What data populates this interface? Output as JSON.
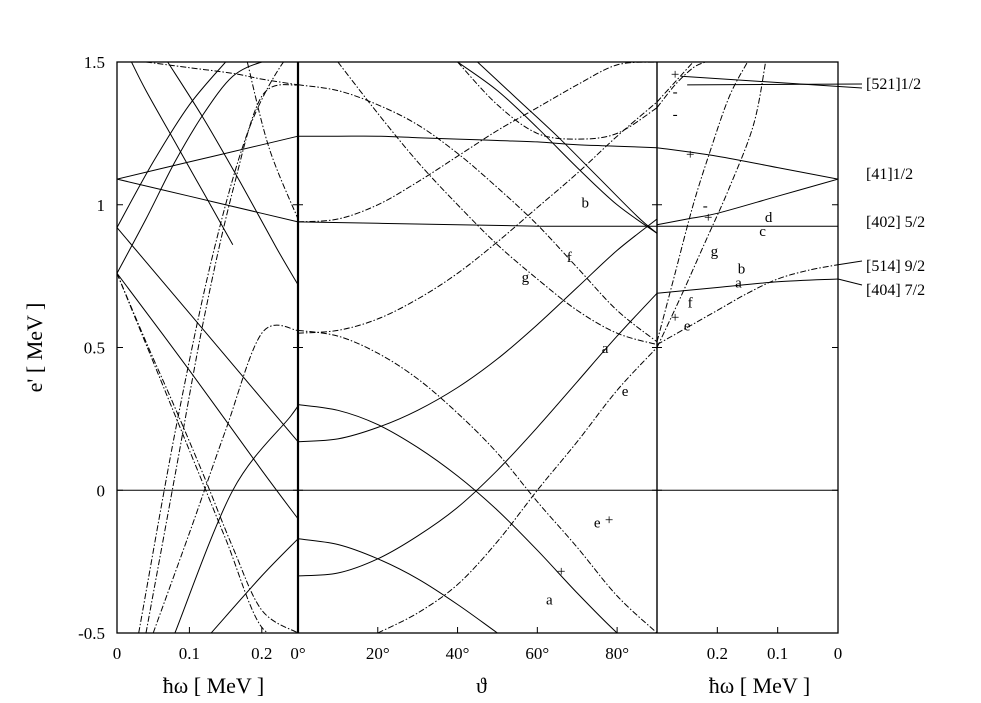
{
  "chart_data": {
    "type": "line",
    "title": "",
    "ylabel": "e' [ MeV ]",
    "ylim": [
      -0.5,
      1.5
    ],
    "yticks": [
      "-0.5",
      "0",
      "0.5",
      "1",
      "1.5"
    ],
    "grid": false,
    "panels": [
      {
        "name": "left",
        "xlabel": "ħω [ MeV ]",
        "xlim": [
          0,
          0.25
        ],
        "xticks": [
          {
            "v": 0,
            "label": "0"
          },
          {
            "v": 0.1,
            "label": "0.1"
          },
          {
            "v": 0.2,
            "label": "0.2"
          }
        ]
      },
      {
        "name": "middle",
        "xlabel": "ϑ",
        "xlim": [
          0,
          90
        ],
        "xticks": [
          {
            "v": 0,
            "label": "0°"
          },
          {
            "v": 20,
            "label": "20°"
          },
          {
            "v": 40,
            "label": "40°"
          },
          {
            "v": 60,
            "label": "60°"
          },
          {
            "v": 80,
            "label": "80°"
          }
        ]
      },
      {
        "name": "right",
        "xlabel": "ħω [ MeV ]",
        "xlim": [
          0.3,
          0
        ],
        "xticks": [
          {
            "v": 0.2,
            "label": "0.2"
          },
          {
            "v": 0.1,
            "label": "0.1"
          },
          {
            "v": 0,
            "label": "0"
          }
        ]
      }
    ],
    "orbital_labels": [
      {
        "text": "[521]1/2",
        "y": 1.42
      },
      {
        "text": "[41]1/2",
        "y": 1.1
      },
      {
        "text": "[402] 5/2",
        "y": 0.93
      },
      {
        "text": "[514] 9/2",
        "y": 0.79
      },
      {
        "text": "[404] 7/2",
        "y": 0.74
      }
    ],
    "annotations": [
      {
        "panel": "middle",
        "x": 72,
        "y": 0.99,
        "text": "b"
      },
      {
        "panel": "middle",
        "x": 68,
        "y": 0.8,
        "text": "f"
      },
      {
        "panel": "middle",
        "x": 57,
        "y": 0.73,
        "text": "g"
      },
      {
        "panel": "middle",
        "x": 77,
        "y": 0.48,
        "text": "a"
      },
      {
        "panel": "middle",
        "x": 82,
        "y": 0.33,
        "text": "e"
      },
      {
        "panel": "middle",
        "x": 75,
        "y": -0.13,
        "text": "e"
      },
      {
        "panel": "middle",
        "x": 63,
        "y": -0.4,
        "text": "a"
      },
      {
        "panel": "right",
        "x": 0.205,
        "y": 0.82,
        "text": "g"
      },
      {
        "panel": "right",
        "x": 0.115,
        "y": 0.94,
        "text": "d"
      },
      {
        "panel": "right",
        "x": 0.125,
        "y": 0.89,
        "text": "c"
      },
      {
        "panel": "right",
        "x": 0.16,
        "y": 0.76,
        "text": "b"
      },
      {
        "panel": "right",
        "x": 0.165,
        "y": 0.71,
        "text": "a"
      },
      {
        "panel": "right",
        "x": 0.245,
        "y": 0.64,
        "text": "f"
      },
      {
        "panel": "right",
        "x": 0.25,
        "y": 0.56,
        "text": "e"
      }
    ],
    "signs": [
      {
        "panel": "middle",
        "x": 78,
        "y": -0.12,
        "text": "+"
      },
      {
        "panel": "middle",
        "x": 66,
        "y": -0.3,
        "text": "+"
      },
      {
        "panel": "right",
        "x": 0.27,
        "y": 1.44,
        "text": "+"
      },
      {
        "panel": "right",
        "x": 0.27,
        "y": 1.38,
        "text": "-"
      },
      {
        "panel": "right",
        "x": 0.27,
        "y": 1.3,
        "text": "-"
      },
      {
        "panel": "right",
        "x": 0.245,
        "y": 1.16,
        "text": "+"
      },
      {
        "panel": "right",
        "x": 0.22,
        "y": 0.98,
        "text": "-"
      },
      {
        "panel": "right",
        "x": 0.215,
        "y": 0.94,
        "text": "+"
      },
      {
        "panel": "right",
        "x": 0.27,
        "y": 0.59,
        "text": "+"
      }
    ],
    "series": [
      {
        "panel": "middle",
        "style": "solid",
        "name": "",
        "x": [
          0,
          10,
          20,
          30,
          40,
          50,
          60,
          70,
          80,
          90
        ],
        "y": [
          1.24,
          1.24,
          1.24,
          1.235,
          1.23,
          1.225,
          1.22,
          1.21,
          1.205,
          1.2
        ]
      },
      {
        "panel": "middle",
        "style": "solid",
        "name": "",
        "x": [
          0,
          20,
          40,
          60,
          80,
          90
        ],
        "y": [
          0.94,
          0.935,
          0.93,
          0.925,
          0.925,
          0.925
        ]
      },
      {
        "panel": "middle",
        "style": "dash",
        "name": "",
        "x": [
          0,
          10,
          20,
          30,
          40,
          50,
          60,
          70,
          80,
          90
        ],
        "y": [
          0.94,
          0.95,
          1.0,
          1.08,
          1.17,
          1.26,
          1.34,
          1.42,
          1.49,
          1.5
        ]
      },
      {
        "panel": "middle",
        "style": "dash",
        "name": "",
        "x": [
          0,
          10,
          20,
          30,
          40,
          50,
          60,
          70,
          80,
          90
        ],
        "y": [
          1.42,
          1.4,
          1.35,
          1.28,
          1.18,
          1.06,
          0.93,
          0.78,
          0.63,
          0.52
        ]
      },
      {
        "panel": "middle",
        "style": "dash",
        "name": "",
        "x": [
          0,
          10,
          20,
          30,
          40,
          50,
          60,
          70,
          80,
          90
        ],
        "y": [
          0.55,
          0.56,
          0.6,
          0.67,
          0.76,
          0.87,
          0.99,
          1.11,
          1.24,
          1.36
        ]
      },
      {
        "panel": "middle",
        "style": "dash",
        "name": "",
        "x": [
          40,
          50,
          60,
          70,
          80,
          90
        ],
        "y": [
          1.5,
          1.35,
          1.25,
          1.23,
          1.25,
          1.34
        ]
      },
      {
        "panel": "middle",
        "style": "dash",
        "name": "",
        "x": [
          10,
          20,
          30,
          40,
          50,
          60,
          70,
          80,
          90
        ],
        "y": [
          1.5,
          1.32,
          1.15,
          1.0,
          0.86,
          0.74,
          0.63,
          0.55,
          0.51
        ]
      },
      {
        "panel": "middle",
        "style": "dash",
        "name": "",
        "x": [
          0,
          10,
          20,
          30,
          40,
          50,
          60,
          70,
          80,
          90
        ],
        "y": [
          0.56,
          0.54,
          0.48,
          0.39,
          0.27,
          0.13,
          -0.04,
          -0.2,
          -0.37,
          -0.5
        ]
      },
      {
        "panel": "middle",
        "style": "solid",
        "name": "",
        "x": [
          0,
          10,
          20,
          30,
          40,
          50,
          60,
          70,
          80,
          90
        ],
        "y": [
          0.17,
          0.18,
          0.22,
          0.28,
          0.36,
          0.46,
          0.58,
          0.71,
          0.84,
          0.95
        ]
      },
      {
        "panel": "middle",
        "style": "solid",
        "name": "",
        "x": [
          0,
          10,
          20,
          30,
          40,
          50,
          60,
          70,
          80,
          90
        ],
        "y": [
          0.3,
          0.28,
          0.23,
          0.15,
          0.05,
          -0.07,
          -0.21,
          -0.36,
          -0.5,
          -0.62
        ]
      },
      {
        "panel": "middle",
        "style": "solid",
        "name": "",
        "x": [
          0,
          10,
          20,
          30,
          40,
          50,
          60,
          70,
          80,
          90
        ],
        "y": [
          -0.3,
          -0.29,
          -0.24,
          -0.16,
          -0.06,
          0.07,
          0.22,
          0.38,
          0.54,
          0.69
        ]
      },
      {
        "panel": "middle",
        "style": "solid",
        "name": "",
        "x": [
          0,
          10,
          20,
          30,
          40,
          50,
          60
        ],
        "y": [
          -0.17,
          -0.19,
          -0.24,
          -0.31,
          -0.4,
          -0.5,
          -0.6
        ]
      },
      {
        "panel": "middle",
        "style": "dash",
        "name": "",
        "x": [
          20,
          30,
          40,
          50,
          60,
          70,
          80,
          90
        ],
        "y": [
          -0.5,
          -0.43,
          -0.33,
          -0.18,
          0.0,
          0.17,
          0.35,
          0.5
        ]
      },
      {
        "panel": "middle",
        "style": "solid",
        "name": "",
        "x": [
          40,
          50,
          60,
          70,
          80,
          90
        ],
        "y": [
          1.5,
          1.4,
          1.27,
          1.13,
          1.0,
          0.9
        ]
      },
      {
        "panel": "middle",
        "style": "solid",
        "name": "",
        "x": [
          45,
          55,
          65,
          75,
          85,
          90
        ],
        "y": [
          1.5,
          1.37,
          1.24,
          1.1,
          0.96,
          0.9
        ]
      },
      {
        "panel": "right",
        "style": "solid",
        "name": "",
        "x": [
          0.3,
          0.2,
          0.1,
          0
        ],
        "y": [
          1.2,
          1.17,
          1.13,
          1.09
        ]
      },
      {
        "panel": "right",
        "style": "solid",
        "name": "",
        "x": [
          0.3,
          0.25,
          0.2,
          0.1,
          0
        ],
        "y": [
          0.93,
          0.95,
          0.97,
          1.03,
          1.09
        ]
      },
      {
        "panel": "right",
        "style": "solid",
        "name": "",
        "x": [
          0.3,
          0.2,
          0.1,
          0
        ],
        "y": [
          0.925,
          0.925,
          0.925,
          0.925
        ]
      },
      {
        "panel": "right",
        "style": "solid",
        "name": "",
        "x": [
          0.3,
          0.2,
          0.1,
          0
        ],
        "y": [
          0.69,
          0.71,
          0.73,
          0.74
        ]
      },
      {
        "panel": "right",
        "style": "dash",
        "name": "",
        "x": [
          0.3,
          0.25,
          0.2,
          0.15,
          0.1,
          0.05,
          0
        ],
        "y": [
          0.51,
          0.57,
          0.63,
          0.69,
          0.74,
          0.77,
          0.79
        ]
      },
      {
        "panel": "right",
        "style": "dash",
        "name": "",
        "x": [
          0.3,
          0.27,
          0.24,
          0.21,
          0.18,
          0.15
        ],
        "y": [
          0.52,
          0.76,
          1.0,
          1.2,
          1.38,
          1.5
        ]
      },
      {
        "panel": "right",
        "style": "dash",
        "name": "",
        "x": [
          0.3,
          0.26,
          0.22,
          0.18,
          0.14,
          0.12
        ],
        "y": [
          0.5,
          0.68,
          0.87,
          1.06,
          1.28,
          1.5
        ]
      },
      {
        "panel": "right",
        "style": "dash",
        "name": "",
        "x": [
          0.3,
          0.27,
          0.24,
          0.22
        ],
        "y": [
          1.34,
          1.42,
          1.48,
          1.5
        ]
      },
      {
        "panel": "right",
        "style": "dash",
        "name": "",
        "x": [
          0.3,
          0.27,
          0.24
        ],
        "y": [
          1.36,
          1.43,
          1.5
        ]
      },
      {
        "panel": "left",
        "style": "solid",
        "name": "",
        "x": [
          0,
          0.1,
          0.2,
          0.25
        ],
        "y": [
          1.09,
          1.15,
          1.21,
          1.24
        ]
      },
      {
        "panel": "left",
        "style": "solid",
        "name": "",
        "x": [
          0,
          0.1,
          0.2,
          0.25
        ],
        "y": [
          1.09,
          1.03,
          0.97,
          0.94
        ]
      },
      {
        "panel": "left",
        "style": "solid",
        "name": "",
        "x": [
          0,
          0.1,
          0.2,
          0.25
        ],
        "y": [
          0.92,
          0.62,
          0.32,
          0.17
        ]
      },
      {
        "panel": "left",
        "style": "solid",
        "name": "",
        "x": [
          0,
          0.1,
          0.2,
          0.25
        ],
        "y": [
          0.76,
          0.42,
          0.07,
          -0.1
        ]
      },
      {
        "panel": "left",
        "style": "solid",
        "name": "",
        "x": [
          0.08,
          0.16,
          0.24,
          0.25
        ],
        "y": [
          -0.5,
          0.0,
          0.26,
          0.3
        ]
      },
      {
        "panel": "left",
        "style": "solid",
        "name": "",
        "x": [
          0.13,
          0.2,
          0.25
        ],
        "y": [
          -0.5,
          -0.3,
          -0.17
        ]
      },
      {
        "panel": "left",
        "style": "solid",
        "name": "",
        "x": [
          0.02,
          0.04,
          0.08,
          0.12,
          0.16
        ],
        "y": [
          1.5,
          1.4,
          1.22,
          1.04,
          0.86
        ]
      },
      {
        "panel": "left",
        "style": "solid",
        "name": "",
        "x": [
          0,
          0.04,
          0.08,
          0.12,
          0.16,
          0.2,
          0.22
        ],
        "y": [
          0.76,
          0.95,
          1.15,
          1.32,
          1.45,
          1.5,
          1.5
        ]
      },
      {
        "panel": "left",
        "style": "solid",
        "name": "",
        "x": [
          0,
          0.05,
          0.1,
          0.15
        ],
        "y": [
          0.92,
          1.15,
          1.35,
          1.5
        ]
      },
      {
        "panel": "left",
        "style": "solid",
        "name": "",
        "x": [
          0.07,
          0.12,
          0.17,
          0.22,
          0.25
        ],
        "y": [
          1.5,
          1.3,
          1.08,
          0.85,
          0.72
        ]
      },
      {
        "panel": "left",
        "style": "dash",
        "name": "",
        "x": [
          0,
          0.05,
          0.1,
          0.15,
          0.2,
          0.25
        ],
        "y": [
          0.76,
          0.45,
          0.14,
          -0.17,
          -0.48,
          -0.5
        ]
      },
      {
        "panel": "left",
        "style": "dash",
        "name": "",
        "x": [
          0.05,
          0.1,
          0.15,
          0.2,
          0.25
        ],
        "y": [
          -0.5,
          -0.15,
          0.21,
          0.55,
          0.56
        ]
      },
      {
        "panel": "left",
        "style": "dash",
        "name": "",
        "x": [
          0.04,
          0.08,
          0.12,
          0.16,
          0.2,
          0.25
        ],
        "y": [
          -0.5,
          0.05,
          0.6,
          1.05,
          1.38,
          1.42
        ]
      },
      {
        "panel": "left",
        "style": "dash",
        "name": "",
        "x": [
          0.04,
          0.1,
          0.16,
          0.2,
          0.25
        ],
        "y": [
          1.5,
          1.48,
          1.46,
          1.44,
          1.42
        ]
      },
      {
        "panel": "left",
        "style": "dash",
        "name": "",
        "x": [
          0,
          0.04,
          0.08,
          0.12,
          0.16,
          0.2,
          0.25
        ],
        "y": [
          0.76,
          0.52,
          0.29,
          0.05,
          -0.2,
          -0.42,
          -0.5
        ]
      },
      {
        "panel": "left",
        "style": "dash",
        "name": "",
        "x": [
          0.18,
          0.21,
          0.25
        ],
        "y": [
          1.5,
          1.2,
          0.95
        ]
      },
      {
        "panel": "left",
        "style": "dash",
        "name": "",
        "x": [
          0.03,
          0.08,
          0.13,
          0.18,
          0.23,
          0.25
        ],
        "y": [
          -0.5,
          0.2,
          0.8,
          1.25,
          1.5,
          1.5
        ]
      }
    ]
  }
}
